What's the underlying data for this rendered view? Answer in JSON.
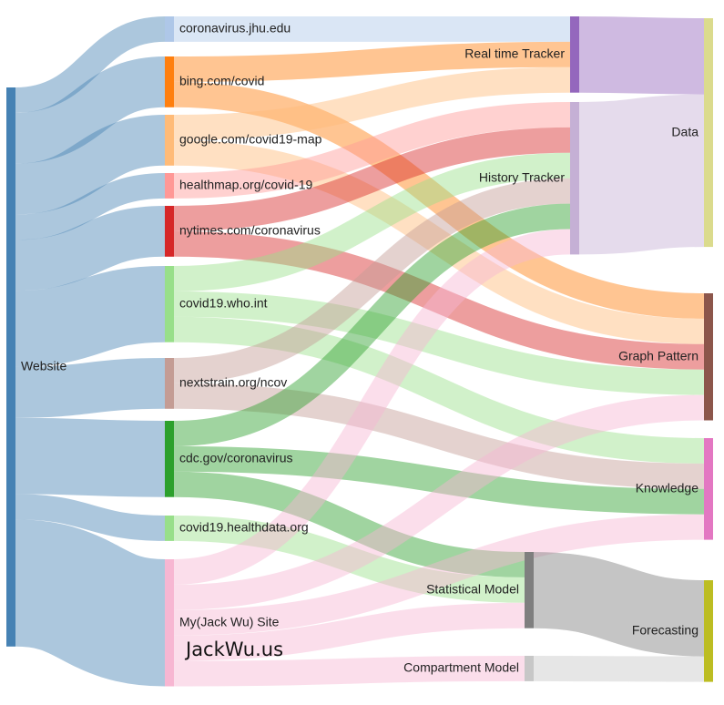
{
  "chart_data": {
    "type": "sankey",
    "nodes": [
      {
        "name": "Website",
        "color": "#4682b4"
      },
      {
        "name": "coronavirus.jhu.edu",
        "color": "#aec7e8"
      },
      {
        "name": "bing.com/covid",
        "color": "#ff7f0e"
      },
      {
        "name": "google.com/covid19-map",
        "color": "#ffbb78"
      },
      {
        "name": "healthmap.org/covid-19",
        "color": "#ff9896"
      },
      {
        "name": "nytimes.com/coronavirus",
        "color": "#d62728"
      },
      {
        "name": "covid19.who.int",
        "color": "#98df8a"
      },
      {
        "name": "nextstrain.org/ncov",
        "color": "#c49c94"
      },
      {
        "name": "cdc.gov/coronavirus",
        "color": "#2ca02c"
      },
      {
        "name": "covid19.healthdata.org",
        "color": "#98df8a"
      },
      {
        "name": "My(Jack Wu) Site",
        "color": "#f7b6d2"
      },
      {
        "name": "Real time Tracker",
        "color": "#9467bd"
      },
      {
        "name": "History Tracker",
        "color": "#c5b0d5"
      },
      {
        "name": "Statistical Model",
        "color": "#7f7f7f"
      },
      {
        "name": "Compartment Model",
        "color": "#c7c7c7"
      },
      {
        "name": "Data",
        "color": "#dbdb8d"
      },
      {
        "name": "Graph Pattern",
        "color": "#8c564b"
      },
      {
        "name": "Knowledge",
        "color": "#e377c2"
      },
      {
        "name": "Forecasting",
        "color": "#bcbd22"
      }
    ],
    "links": [
      {
        "source": "Website",
        "target": "coronavirus.jhu.edu",
        "value": 1
      },
      {
        "source": "Website",
        "target": "bing.com/covid",
        "value": 2
      },
      {
        "source": "Website",
        "target": "google.com/covid19-map",
        "value": 2
      },
      {
        "source": "Website",
        "target": "healthmap.org/covid-19",
        "value": 1
      },
      {
        "source": "Website",
        "target": "nytimes.com/coronavirus",
        "value": 2
      },
      {
        "source": "Website",
        "target": "covid19.who.int",
        "value": 3
      },
      {
        "source": "Website",
        "target": "nextstrain.org/ncov",
        "value": 2
      },
      {
        "source": "Website",
        "target": "cdc.gov/coronavirus",
        "value": 3
      },
      {
        "source": "Website",
        "target": "covid19.healthdata.org",
        "value": 1
      },
      {
        "source": "Website",
        "target": "My(Jack Wu) Site",
        "value": 5
      },
      {
        "source": "coronavirus.jhu.edu",
        "target": "Real time Tracker",
        "value": 1
      },
      {
        "source": "bing.com/covid",
        "target": "Real time Tracker",
        "value": 1
      },
      {
        "source": "bing.com/covid",
        "target": "Graph Pattern",
        "value": 1
      },
      {
        "source": "google.com/covid19-map",
        "target": "Real time Tracker",
        "value": 1
      },
      {
        "source": "google.com/covid19-map",
        "target": "Graph Pattern",
        "value": 1
      },
      {
        "source": "healthmap.org/covid-19",
        "target": "History Tracker",
        "value": 1
      },
      {
        "source": "nytimes.com/coronavirus",
        "target": "History Tracker",
        "value": 1
      },
      {
        "source": "nytimes.com/coronavirus",
        "target": "Graph Pattern",
        "value": 1
      },
      {
        "source": "covid19.who.int",
        "target": "History Tracker",
        "value": 1
      },
      {
        "source": "covid19.who.int",
        "target": "Graph Pattern",
        "value": 1
      },
      {
        "source": "covid19.who.int",
        "target": "Knowledge",
        "value": 1
      },
      {
        "source": "nextstrain.org/ncov",
        "target": "History Tracker",
        "value": 1
      },
      {
        "source": "nextstrain.org/ncov",
        "target": "Knowledge",
        "value": 1
      },
      {
        "source": "cdc.gov/coronavirus",
        "target": "History Tracker",
        "value": 1
      },
      {
        "source": "cdc.gov/coronavirus",
        "target": "Knowledge",
        "value": 1
      },
      {
        "source": "cdc.gov/coronavirus",
        "target": "Statistical Model",
        "value": 1
      },
      {
        "source": "covid19.healthdata.org",
        "target": "Statistical Model",
        "value": 1
      },
      {
        "source": "My(Jack Wu) Site",
        "target": "History Tracker",
        "value": 1
      },
      {
        "source": "My(Jack Wu) Site",
        "target": "Graph Pattern",
        "value": 1
      },
      {
        "source": "My(Jack Wu) Site",
        "target": "Knowledge",
        "value": 1
      },
      {
        "source": "My(Jack Wu) Site",
        "target": "Statistical Model",
        "value": 1
      },
      {
        "source": "My(Jack Wu) Site",
        "target": "Compartment Model",
        "value": 1
      },
      {
        "source": "Real time Tracker",
        "target": "Data",
        "value": 3
      },
      {
        "source": "History Tracker",
        "target": "Data",
        "value": 6
      },
      {
        "source": "Statistical Model",
        "target": "Forecasting",
        "value": 3
      },
      {
        "source": "Compartment Model",
        "target": "Forecasting",
        "value": 1
      }
    ],
    "watermark": "JackWu.us"
  }
}
